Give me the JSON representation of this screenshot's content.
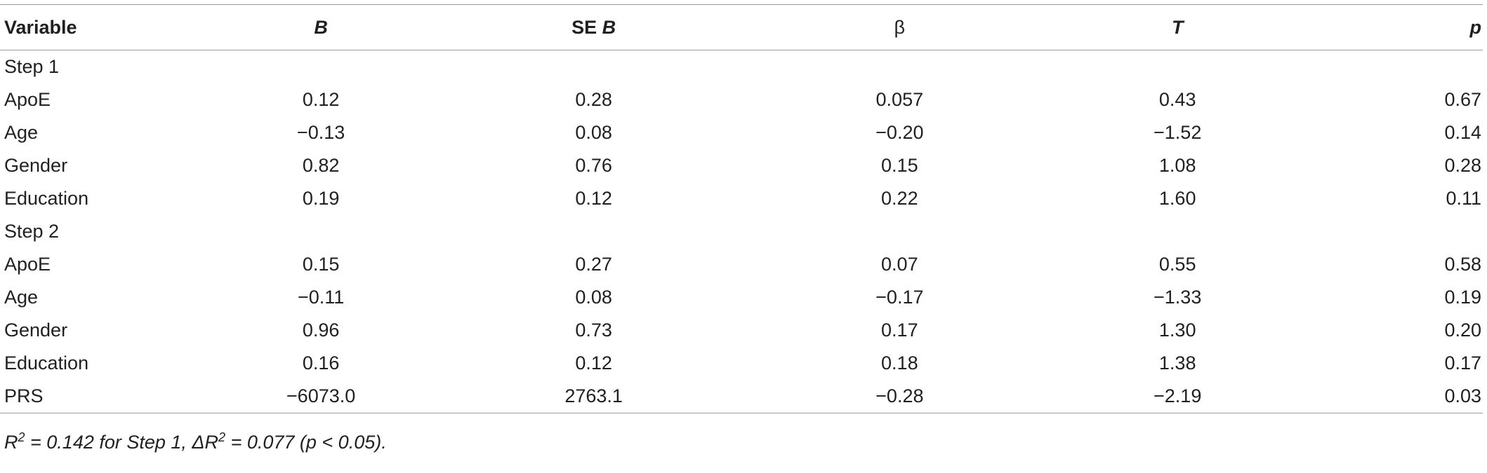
{
  "table": {
    "headers": {
      "variable": "Variable",
      "b": "B",
      "se_prefix": "SE ",
      "se_b": "B",
      "beta": "β",
      "t": "T",
      "p": "p"
    },
    "rows": [
      {
        "label": "Step 1",
        "b": "",
        "se": "",
        "beta": "",
        "t": "",
        "p": ""
      },
      {
        "label": "ApoE",
        "b": "0.12",
        "se": "0.28",
        "beta": "0.057",
        "t": "0.43",
        "p": "0.67"
      },
      {
        "label": "Age",
        "b": "−0.13",
        "se": "0.08",
        "beta": "−0.20",
        "t": "−1.52",
        "p": "0.14"
      },
      {
        "label": "Gender",
        "b": "0.82",
        "se": "0.76",
        "beta": "0.15",
        "t": "1.08",
        "p": "0.28"
      },
      {
        "label": "Education",
        "b": "0.19",
        "se": "0.12",
        "beta": "0.22",
        "t": "1.60",
        "p": "0.11"
      },
      {
        "label": "Step 2",
        "b": "",
        "se": "",
        "beta": "",
        "t": "",
        "p": ""
      },
      {
        "label": "ApoE",
        "b": "0.15",
        "se": "0.27",
        "beta": "0.07",
        "t": "0.55",
        "p": "0.58"
      },
      {
        "label": "Age",
        "b": "−0.11",
        "se": "0.08",
        "beta": "−0.17",
        "t": "−1.33",
        "p": "0.19"
      },
      {
        "label": "Gender",
        "b": "0.96",
        "se": "0.73",
        "beta": "0.17",
        "t": "1.30",
        "p": "0.20"
      },
      {
        "label": "Education",
        "b": "0.16",
        "se": "0.12",
        "beta": "0.18",
        "t": "1.38",
        "p": "0.17"
      },
      {
        "label": "PRS",
        "b": "−6073.0",
        "se": "2763.1",
        "beta": "−0.28",
        "t": "−2.19",
        "p": "0.03"
      }
    ]
  },
  "footnote": {
    "r_symbol": "R",
    "sup1": "2",
    "part1": " = 0.142 for Step 1, ΔR",
    "sup2": "2",
    "part2": " = 0.077 (p < 0.05)."
  }
}
